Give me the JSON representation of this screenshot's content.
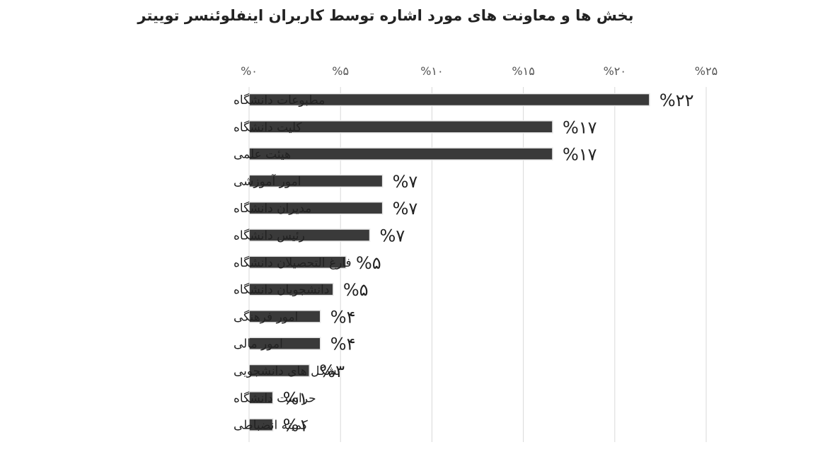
{
  "chart_data": {
    "type": "bar",
    "orientation": "horizontal",
    "title": "بخش ها و معاونت های مورد اشاره توسط کاربران اینفلوئنسر توییتر",
    "xlabel": "",
    "ylabel": "",
    "xlim": [
      0,
      25
    ],
    "grid": true,
    "legend": "none",
    "bar_color": "#3a3a3a",
    "tick_labels": [
      "%۰",
      "%۵",
      "%۱۰",
      "%۱۵",
      "%۲۰",
      "%۲۵"
    ],
    "categories": [
      "مطبوعات دانشگاه",
      "کلیت دانشگاه",
      "هیئت علمی",
      "امور آموزشی",
      "مدیران دانشگاه",
      "رئیس دانشگاه",
      "فارغ التحصیلان دانشگاه",
      "دانشجویان دانشگاه",
      "امور فرهنگی",
      "امور مالی",
      "تشکل های دانشجویی",
      "حراست دانشگاه",
      "کمیته انضباطی"
    ],
    "values": [
      21.9,
      16.6,
      16.6,
      7.3,
      7.3,
      6.6,
      5.3,
      4.6,
      3.9,
      3.9,
      3.3,
      1.3,
      1.3
    ],
    "data_labels": [
      "%۲۲",
      "%۱۷",
      "%۱۷",
      "%۷",
      "%۷",
      "%۷",
      "%۵",
      "%۵",
      "%۴",
      "%۴",
      "%۳",
      "%۱",
      "%۱"
    ]
  }
}
